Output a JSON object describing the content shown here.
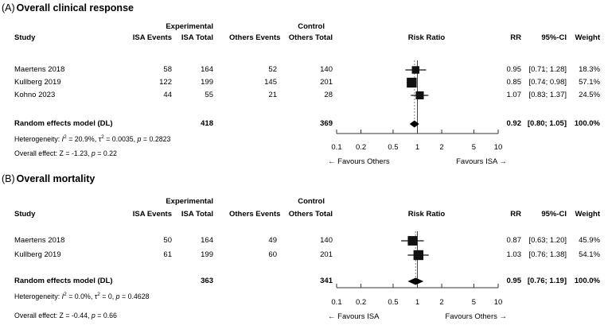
{
  "figure_type": "forest-plot-meta-analysis",
  "colors": {
    "text": "#000000",
    "marker": "#111111",
    "diamond": "#000000",
    "axis": "#333333",
    "ref_line": "#444444",
    "pooled_dashed_line": "#808080",
    "background": "#ffffff"
  },
  "chart_data": [
    {
      "type": "forest",
      "panel_label": "(A)",
      "title": "Overall clinical response",
      "group_headers": {
        "experimental": "Experimental",
        "control": "Control"
      },
      "columns": {
        "study": "Study",
        "isa_events": "ISA Events",
        "isa_total": "ISA Total",
        "others_events": "Others Events",
        "others_total": "Others Total",
        "risk_ratio": "Risk Ratio",
        "rr": "RR",
        "ci": "95%-CI",
        "weight": "Weight"
      },
      "studies": [
        {
          "study": "Maertens 2018",
          "isa_events": "58",
          "isa_total": "164",
          "others_events": "52",
          "others_total": "140",
          "rr": 0.95,
          "ci_low": 0.71,
          "ci_high": 1.28,
          "rr_text": "0.95",
          "ci_text": "[0.71; 1.28]",
          "weight": 18.3,
          "weight_text": "18.3%"
        },
        {
          "study": "Kullberg 2019",
          "isa_events": "122",
          "isa_total": "199",
          "others_events": "145",
          "others_total": "201",
          "rr": 0.85,
          "ci_low": 0.74,
          "ci_high": 0.98,
          "rr_text": "0.85",
          "ci_text": "[0.74; 0.98]",
          "weight": 57.1,
          "weight_text": "57.1%"
        },
        {
          "study": "Kohno 2023",
          "isa_events": "44",
          "isa_total": "55",
          "others_events": "21",
          "others_total": "28",
          "rr": 1.07,
          "ci_low": 0.83,
          "ci_high": 1.37,
          "rr_text": "1.07",
          "ci_text": "[0.83; 1.37]",
          "weight": 24.5,
          "weight_text": "24.5%"
        }
      ],
      "summary": {
        "label": "Random effects model (DL)",
        "isa_total": "418",
        "others_total": "369",
        "rr": 0.92,
        "ci_low": 0.8,
        "ci_high": 1.05,
        "rr_text": "0.92",
        "ci_text": "[0.80; 1.05]",
        "weight_text": "100.0%"
      },
      "heterogeneity_segments": [
        [
          "t",
          "Heterogeneity: "
        ],
        [
          "i",
          "I"
        ],
        [
          "sup",
          "2"
        ],
        [
          "t",
          " = 20.9%, τ"
        ],
        [
          "sup",
          "2"
        ],
        [
          "t",
          " = 0.0035, "
        ],
        [
          "i",
          "p"
        ],
        [
          "t",
          " = 0.2823"
        ]
      ],
      "overall_effect_segments": [
        [
          "t",
          "Overall effect: Z = -1.23, "
        ],
        [
          "i",
          "p"
        ],
        [
          "t",
          " = 0.22"
        ]
      ],
      "axis": {
        "scale": "log",
        "range": [
          0.1,
          10
        ],
        "ticks": [
          0.1,
          0.2,
          0.5,
          1,
          2,
          5,
          10
        ],
        "tick_labels": [
          "0.1",
          "0.2",
          "0.5",
          "1",
          "2",
          "5",
          "10"
        ],
        "left_label": "← Favours Others",
        "right_label": "Favours ISA →"
      }
    },
    {
      "type": "forest",
      "panel_label": "(B)",
      "title": "Overall mortality",
      "group_headers": {
        "experimental": "Experimental",
        "control": "Control"
      },
      "columns": {
        "study": "Study",
        "isa_events": "ISA Events",
        "isa_total": "ISA Total",
        "others_events": "Others Events",
        "others_total": "Others Total",
        "risk_ratio": "Risk Ratio",
        "rr": "RR",
        "ci": "95%-CI",
        "weight": "Weight"
      },
      "studies": [
        {
          "study": "Maertens 2018",
          "isa_events": "50",
          "isa_total": "164",
          "others_events": "49",
          "others_total": "140",
          "rr": 0.87,
          "ci_low": 0.63,
          "ci_high": 1.2,
          "rr_text": "0.87",
          "ci_text": "[0.63; 1.20]",
          "weight": 45.9,
          "weight_text": "45.9%"
        },
        {
          "study": "Kullberg 2019",
          "isa_events": "61",
          "isa_total": "199",
          "others_events": "60",
          "others_total": "201",
          "rr": 1.03,
          "ci_low": 0.76,
          "ci_high": 1.38,
          "rr_text": "1.03",
          "ci_text": "[0.76; 1.38]",
          "weight": 54.1,
          "weight_text": "54.1%"
        }
      ],
      "summary": {
        "label": "Random effects model (DL)",
        "isa_total": "363",
        "others_total": "341",
        "rr": 0.95,
        "ci_low": 0.76,
        "ci_high": 1.19,
        "rr_text": "0.95",
        "ci_text": "[0.76; 1.19]",
        "weight_text": "100.0%"
      },
      "heterogeneity_segments": [
        [
          "t",
          "Heterogeneity: "
        ],
        [
          "i",
          "I"
        ],
        [
          "sup",
          "2"
        ],
        [
          "t",
          " = 0.0%, τ"
        ],
        [
          "sup",
          "2"
        ],
        [
          "t",
          " = 0, "
        ],
        [
          "i",
          "p"
        ],
        [
          "t",
          " = 0.4628"
        ]
      ],
      "overall_effect_segments": [
        [
          "t",
          "Overall effect: Z = -0.44, "
        ],
        [
          "i",
          "p"
        ],
        [
          "t",
          " = 0.66"
        ]
      ],
      "axis": {
        "scale": "log",
        "range": [
          0.1,
          10
        ],
        "ticks": [
          0.1,
          0.2,
          0.5,
          1,
          2,
          5,
          10
        ],
        "tick_labels": [
          "0.1",
          "0.2",
          "0.5",
          "1",
          "2",
          "5",
          "10"
        ],
        "left_label": "← Favours ISA",
        "right_label": "Favours Others →"
      }
    }
  ]
}
